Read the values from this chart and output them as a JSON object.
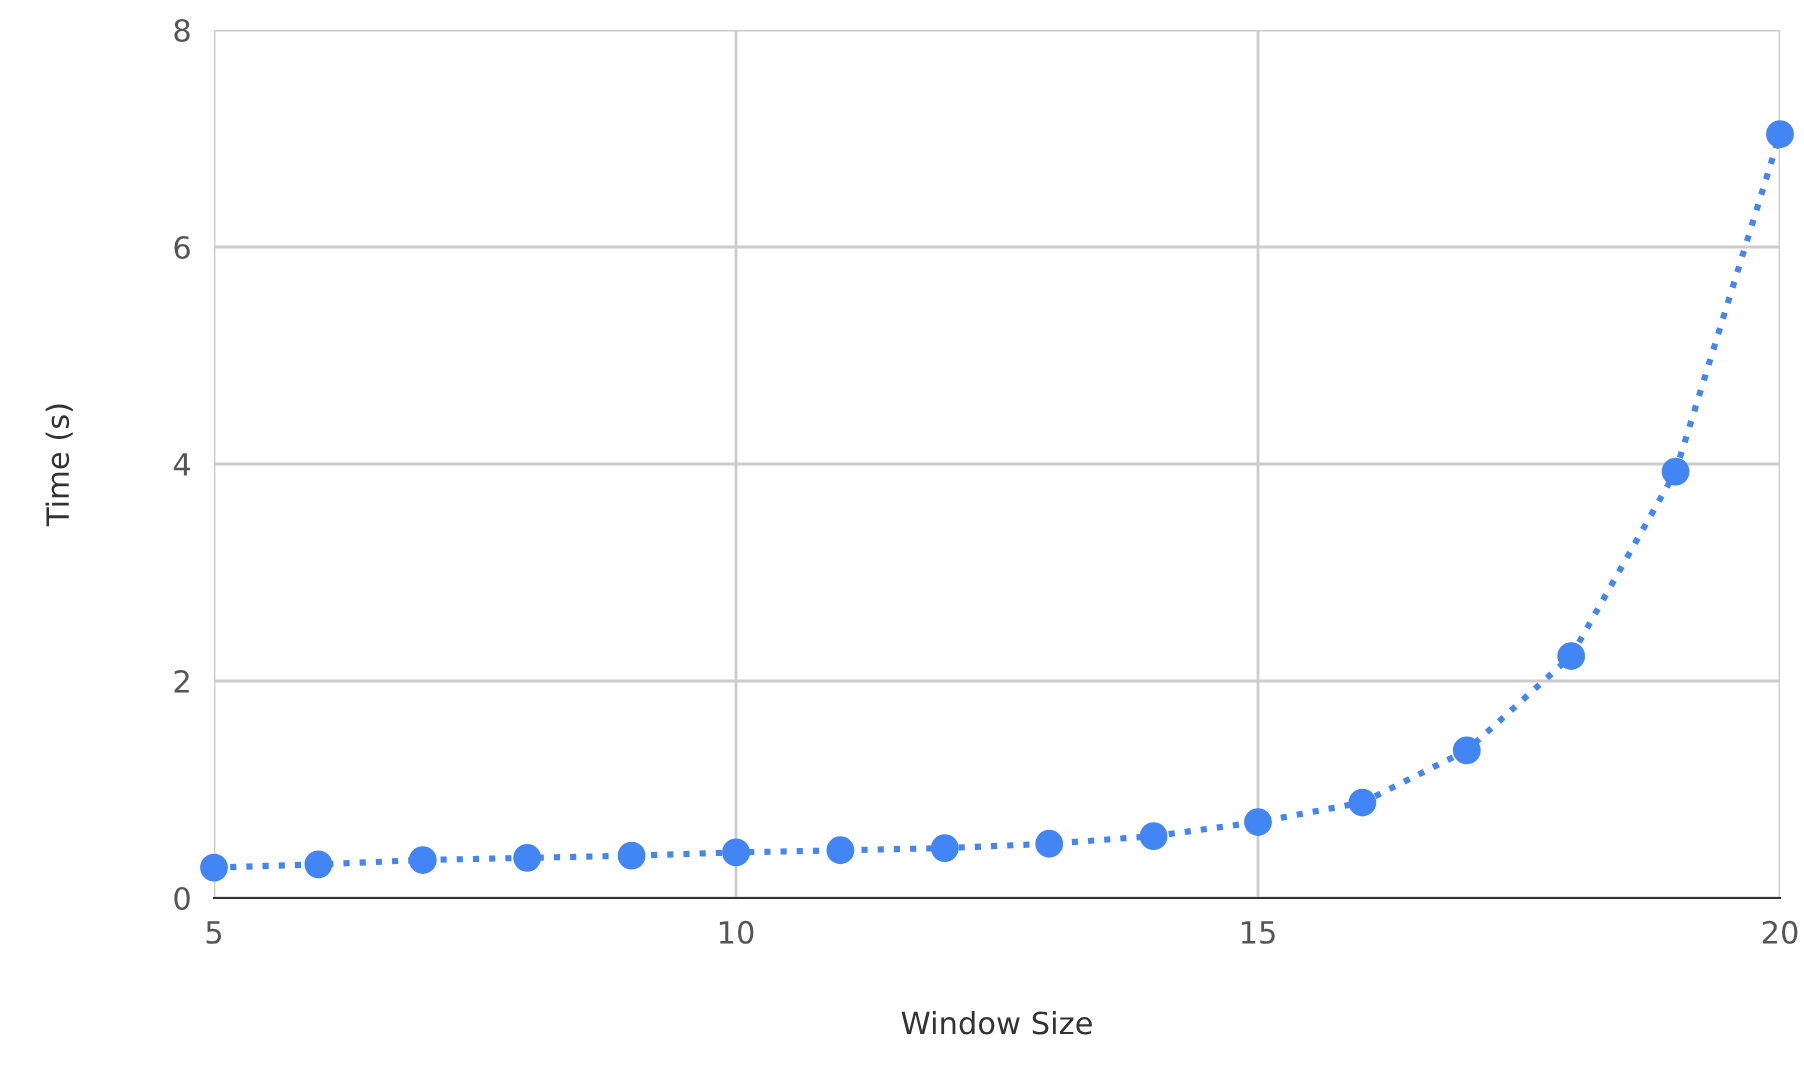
{
  "chart_data": {
    "type": "line",
    "xlabel": "Window Size",
    "ylabel": "Time (s)",
    "x": [
      5,
      6,
      7,
      8,
      9,
      10,
      11,
      12,
      13,
      14,
      15,
      16,
      17,
      18,
      19,
      20
    ],
    "series": [
      {
        "color": "#4285f4",
        "values": [
          0.28,
          0.31,
          0.35,
          0.37,
          0.39,
          0.42,
          0.44,
          0.46,
          0.5,
          0.57,
          0.7,
          0.88,
          1.36,
          2.23,
          3.93,
          7.04
        ]
      }
    ],
    "xlim": [
      5,
      20
    ],
    "xticks": [
      5,
      10,
      15,
      20
    ],
    "ylim": [
      0,
      8
    ],
    "yticks": [
      0,
      2,
      4,
      6,
      8
    ],
    "grid": true,
    "marker": "circle",
    "line_style": "dotted"
  }
}
